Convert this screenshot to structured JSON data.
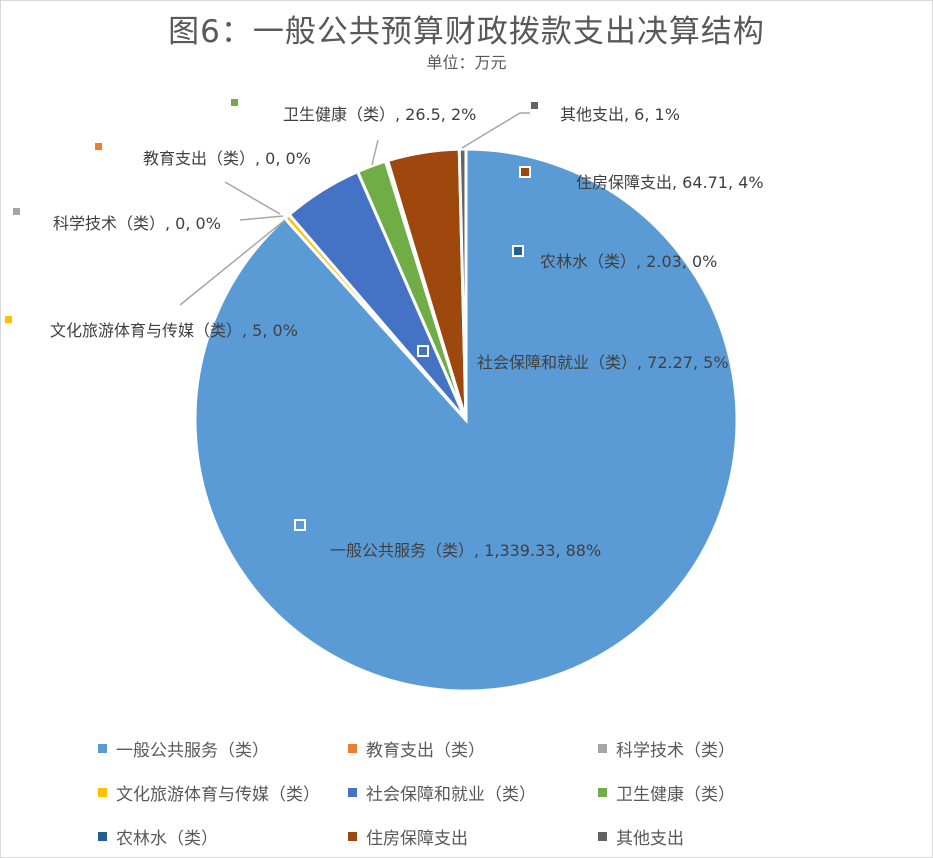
{
  "chart_data": {
    "type": "pie",
    "title": "图6：一般公共预算财政拨款支出决算结构",
    "subtitle": "单位：万元",
    "start_angle": "top",
    "direction": "clockwise",
    "legend_position": "bottom",
    "slices": [
      {
        "name": "一般公共服务（类）",
        "value": 1339.33,
        "percent": "88%",
        "label": "一般公共服务（类）, 1,339.33, 88%",
        "color": "#5b9bd5"
      },
      {
        "name": "教育支出（类）",
        "value": 0,
        "percent": "0%",
        "label": "教育支出（类）, 0, 0%",
        "color": "#ed7d31"
      },
      {
        "name": "科学技术（类）",
        "value": 0,
        "percent": "0%",
        "label": "科学技术（类）, 0, 0%",
        "color": "#a5a5a5"
      },
      {
        "name": "文化旅游体育与传媒（类）",
        "value": 5,
        "percent": "0%",
        "label": "文化旅游体育与传媒（类）, 5, 0%",
        "color": "#ffc000"
      },
      {
        "name": "社会保障和就业（类）",
        "value": 72.27,
        "percent": "5%",
        "label": "社会保障和就业（类）, 72.27, 5%",
        "color": "#4472c4"
      },
      {
        "name": "卫生健康（类）",
        "value": 26.5,
        "percent": "2%",
        "label": "卫生健康（类）, 26.5, 2%",
        "color": "#70ad47"
      },
      {
        "name": "农林水（类）",
        "value": 2.03,
        "percent": "0%",
        "label": "农林水（类）, 2.03, 0%",
        "color": "#255e91"
      },
      {
        "name": "住房保障支出",
        "value": 64.71,
        "percent": "4%",
        "label": "住房保障支出, 64.71, 4%",
        "color": "#9e480e"
      },
      {
        "name": "其他支出",
        "value": 6,
        "percent": "1%",
        "label": "其他支出, 6, 1%",
        "color": "#636363"
      }
    ]
  }
}
